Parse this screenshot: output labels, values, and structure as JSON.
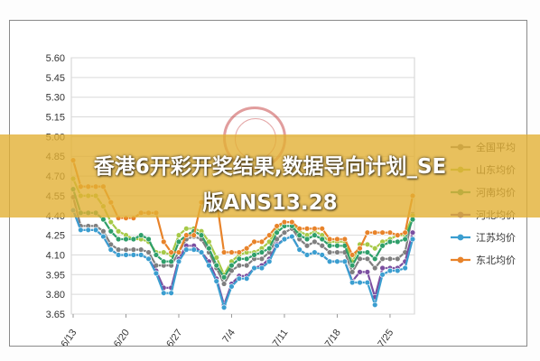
{
  "banner": {
    "line1": "香港6开彩开奖结果,数据导向计划_SE",
    "line2": "版ANS13.28"
  },
  "chart_data": {
    "type": "line",
    "title": "",
    "xlabel": "",
    "ylabel": "",
    "ylim": [
      3.65,
      5.6
    ],
    "yticks": [
      "5.60",
      "5.45",
      "5.30",
      "5.15",
      "5.00",
      "4.85",
      "4.70",
      "4.55",
      "4.40",
      "4.25",
      "4.10",
      "3.95",
      "3.80",
      "3.65"
    ],
    "xticks": [
      "6/13",
      "6/20",
      "6/27",
      "7/4",
      "7/11",
      "7/18",
      "7/25"
    ],
    "x": [
      "6/13",
      "6/14",
      "6/15",
      "6/16",
      "6/17",
      "6/18",
      "6/19",
      "6/20",
      "6/21",
      "6/22",
      "6/23",
      "6/24",
      "6/25",
      "6/26",
      "6/27",
      "6/28",
      "6/29",
      "6/30",
      "7/1",
      "7/2",
      "7/3",
      "7/4",
      "7/5",
      "7/6",
      "7/7",
      "7/8",
      "7/9",
      "7/10",
      "7/11",
      "7/12",
      "7/13",
      "7/14",
      "7/15",
      "7/16",
      "7/17",
      "7/18",
      "7/19",
      "7/20",
      "7/21",
      "7/22",
      "7/23",
      "7/24",
      "7/25",
      "7/26",
      "7/27",
      "7/28"
    ],
    "legend_position": "right",
    "grid": true,
    "series": [
      {
        "name": "全国平均",
        "color": "#7f7f7f",
        "values": [
          4.54,
          4.32,
          4.32,
          4.32,
          4.28,
          4.18,
          4.14,
          4.14,
          4.14,
          4.14,
          4.12,
          4.02,
          4.02,
          4.02,
          4.12,
          4.22,
          4.24,
          4.22,
          4.12,
          4.0,
          3.88,
          3.98,
          4.02,
          4.02,
          4.07,
          4.07,
          4.12,
          4.22,
          4.27,
          4.3,
          4.22,
          4.17,
          4.2,
          4.17,
          4.12,
          4.12,
          4.12,
          3.97,
          4.07,
          4.07,
          4.0,
          4.07,
          4.07,
          4.07,
          4.12,
          4.41
        ]
      },
      {
        "name": "山东均价",
        "color": "#a6c947",
        "values": [
          4.68,
          4.55,
          4.55,
          4.55,
          4.47,
          4.35,
          4.28,
          4.25,
          4.22,
          4.22,
          4.2,
          4.12,
          4.12,
          4.1,
          4.25,
          4.3,
          4.3,
          4.28,
          4.2,
          4.08,
          3.95,
          4.05,
          4.1,
          4.12,
          4.12,
          4.15,
          4.2,
          4.3,
          4.35,
          4.35,
          4.28,
          4.25,
          4.28,
          4.25,
          4.2,
          4.2,
          4.2,
          4.05,
          4.18,
          4.18,
          4.15,
          4.2,
          4.22,
          4.25,
          4.25,
          4.4
        ]
      },
      {
        "name": "河南均价",
        "color": "#2e9f6a",
        "values": [
          4.6,
          4.42,
          4.42,
          4.42,
          4.37,
          4.28,
          4.22,
          4.22,
          4.22,
          4.25,
          4.22,
          4.1,
          4.05,
          4.05,
          4.2,
          4.25,
          4.28,
          4.25,
          4.15,
          4.02,
          3.93,
          4.02,
          4.07,
          4.07,
          4.1,
          4.12,
          4.15,
          4.27,
          4.32,
          4.32,
          4.25,
          4.22,
          4.25,
          4.22,
          4.17,
          4.17,
          4.17,
          4.02,
          4.12,
          4.12,
          4.07,
          4.17,
          4.2,
          4.2,
          4.22,
          4.37
        ]
      },
      {
        "name": "河北均价",
        "color": "#7b4fa0",
        "values": [
          4.44,
          4.29,
          4.29,
          4.29,
          4.24,
          4.14,
          4.1,
          4.1,
          4.1,
          4.1,
          4.07,
          3.98,
          3.85,
          3.85,
          4.07,
          4.17,
          4.17,
          4.12,
          4.05,
          3.92,
          3.72,
          3.88,
          3.94,
          3.94,
          4.0,
          4.02,
          4.07,
          4.18,
          4.22,
          4.24,
          4.14,
          4.1,
          4.12,
          4.1,
          4.05,
          4.05,
          4.05,
          3.9,
          3.97,
          3.97,
          3.78,
          4.0,
          4.0,
          4.0,
          4.05,
          4.27
        ]
      },
      {
        "name": "江苏均价",
        "color": "#3b9ed0",
        "values": [
          4.44,
          4.29,
          4.29,
          4.29,
          4.24,
          4.14,
          4.1,
          4.1,
          4.1,
          4.1,
          4.07,
          3.96,
          3.81,
          3.81,
          4.05,
          4.14,
          4.14,
          4.12,
          4.02,
          3.9,
          3.7,
          3.86,
          3.92,
          3.92,
          4.0,
          4.0,
          4.05,
          4.17,
          4.22,
          4.24,
          4.14,
          4.1,
          4.12,
          4.1,
          4.05,
          4.05,
          4.05,
          3.89,
          3.89,
          3.89,
          3.72,
          3.95,
          3.98,
          3.98,
          4.0,
          4.22
        ]
      },
      {
        "name": "东北均价",
        "color": "#e8832a",
        "values": [
          4.82,
          4.62,
          4.62,
          4.62,
          4.62,
          4.5,
          4.38,
          4.38,
          4.38,
          4.42,
          4.42,
          4.42,
          4.2,
          4.12,
          4.12,
          4.25,
          4.25,
          4.5,
          4.52,
          4.52,
          4.12,
          4.12,
          4.12,
          4.15,
          4.2,
          4.2,
          4.25,
          4.32,
          4.35,
          4.35,
          4.3,
          4.3,
          4.3,
          4.3,
          4.22,
          4.22,
          4.22,
          4.1,
          4.15,
          4.27,
          4.27,
          4.27,
          4.27,
          4.25,
          4.27,
          4.55
        ]
      }
    ]
  }
}
